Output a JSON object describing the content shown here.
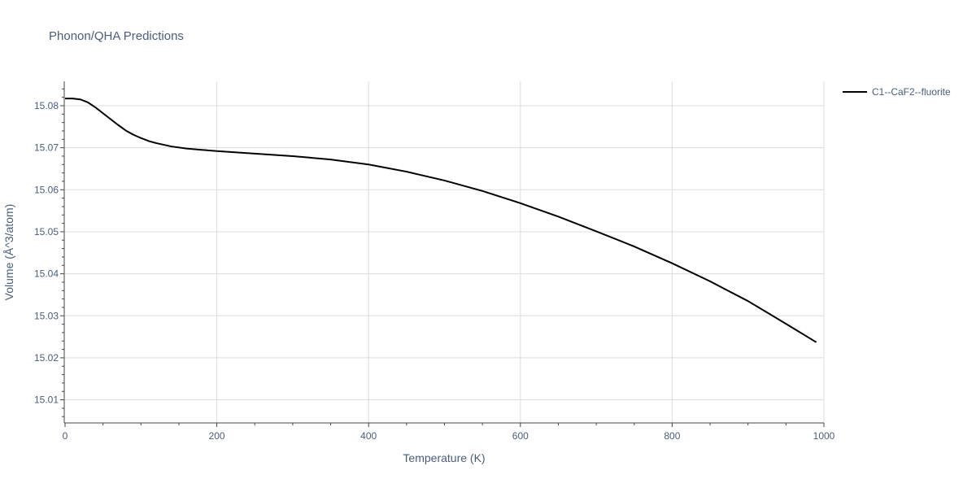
{
  "chart_data": {
    "type": "line",
    "title": "Phonon/QHA Predictions",
    "xlabel": "Temperature (K)",
    "ylabel": "Volume (Å^3/atom)",
    "xlim": [
      0,
      1000
    ],
    "ylim": [
      15.0045,
      15.0858
    ],
    "x_ticks": [
      0,
      200,
      400,
      600,
      800,
      1000
    ],
    "x_tick_labels": [
      "0",
      "200",
      "400",
      "600",
      "800",
      "1000"
    ],
    "y_ticks": [
      15.01,
      15.02,
      15.03,
      15.04,
      15.05,
      15.06,
      15.07,
      15.08
    ],
    "y_tick_labels": [
      "15.01",
      "15.02",
      "15.03",
      "15.04",
      "15.05",
      "15.06",
      "15.07",
      "15.08"
    ],
    "grid": true,
    "legend_position": "top-right",
    "series": [
      {
        "name": "C1--CaF2--fluorite",
        "color": "#000000",
        "x": [
          0,
          10,
          20,
          30,
          40,
          50,
          60,
          70,
          80,
          90,
          100,
          110,
          120,
          140,
          160,
          180,
          200,
          250,
          300,
          350,
          400,
          450,
          500,
          550,
          600,
          650,
          700,
          750,
          800,
          850,
          900,
          950,
          990
        ],
        "y": [
          15.0817,
          15.0817,
          15.0815,
          15.0808,
          15.0796,
          15.0782,
          15.0768,
          15.0754,
          15.0741,
          15.0731,
          15.0723,
          15.0716,
          15.0711,
          15.0703,
          15.0698,
          15.0695,
          15.0692,
          15.0686,
          15.068,
          15.0672,
          15.066,
          15.0643,
          15.0622,
          15.0597,
          15.0568,
          15.0536,
          15.0501,
          15.0465,
          15.0425,
          15.0382,
          15.0335,
          15.0281,
          15.0237
        ]
      }
    ]
  }
}
